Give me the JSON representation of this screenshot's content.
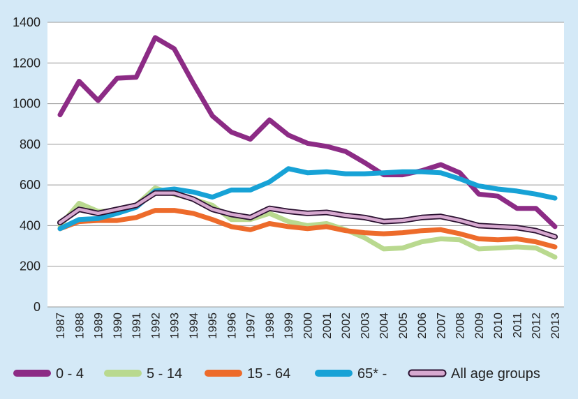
{
  "chart_data": {
    "type": "line",
    "title": "",
    "xlabel": "",
    "ylabel": "",
    "ylim": [
      0,
      1400
    ],
    "yticks": [
      0,
      200,
      400,
      600,
      800,
      1000,
      1200,
      1400
    ],
    "grid": true,
    "legend_position": "bottom",
    "categories": [
      "1987",
      "1988",
      "1989",
      "1990",
      "1991",
      "1992",
      "1993",
      "1994",
      "1995",
      "1996",
      "1997",
      "1998",
      "1999",
      "2000",
      "2001",
      "2002",
      "2003",
      "2004",
      "2005",
      "2006",
      "2007",
      "2008",
      "2009",
      "2010",
      "2011",
      "2012",
      "2013"
    ],
    "series": [
      {
        "name": "5 - 14",
        "color": "#b9d98f",
        "outlined": false,
        "values": [
          400,
          510,
          470,
          470,
          500,
          585,
          555,
          530,
          500,
          430,
          430,
          460,
          420,
          400,
          410,
          380,
          340,
          285,
          290,
          320,
          335,
          330,
          285,
          290,
          295,
          290,
          245
        ]
      },
      {
        "name": "15 - 64",
        "color": "#ed6b2b",
        "outlined": false,
        "values": [
          385,
          420,
          425,
          425,
          440,
          475,
          475,
          460,
          430,
          395,
          380,
          410,
          395,
          385,
          395,
          375,
          365,
          360,
          365,
          375,
          380,
          360,
          335,
          330,
          335,
          320,
          295
        ]
      },
      {
        "name": "0 - 4",
        "color": "#8c2b85",
        "outlined": false,
        "values": [
          945,
          1110,
          1015,
          1125,
          1130,
          1325,
          1270,
          1100,
          940,
          860,
          825,
          920,
          845,
          805,
          790,
          765,
          710,
          650,
          650,
          670,
          700,
          660,
          555,
          545,
          485,
          485,
          395
        ]
      },
      {
        "name": "65* -",
        "color": "#17a2d6",
        "outlined": false,
        "values": [
          385,
          430,
          435,
          460,
          490,
          570,
          580,
          565,
          540,
          575,
          575,
          615,
          680,
          660,
          665,
          655,
          655,
          660,
          665,
          665,
          660,
          630,
          595,
          580,
          570,
          555,
          535
        ]
      },
      {
        "name": "All age groups",
        "color": "#d7a9d0",
        "outlined": true,
        "values": [
          415,
          480,
          460,
          480,
          500,
          560,
          560,
          530,
          480,
          455,
          440,
          485,
          470,
          460,
          465,
          450,
          440,
          420,
          425,
          440,
          445,
          425,
          400,
          395,
          390,
          375,
          345
        ]
      }
    ],
    "legend_order": [
      "0 - 4",
      "5 - 14",
      "15 - 64",
      "65* -",
      "All age groups"
    ]
  }
}
